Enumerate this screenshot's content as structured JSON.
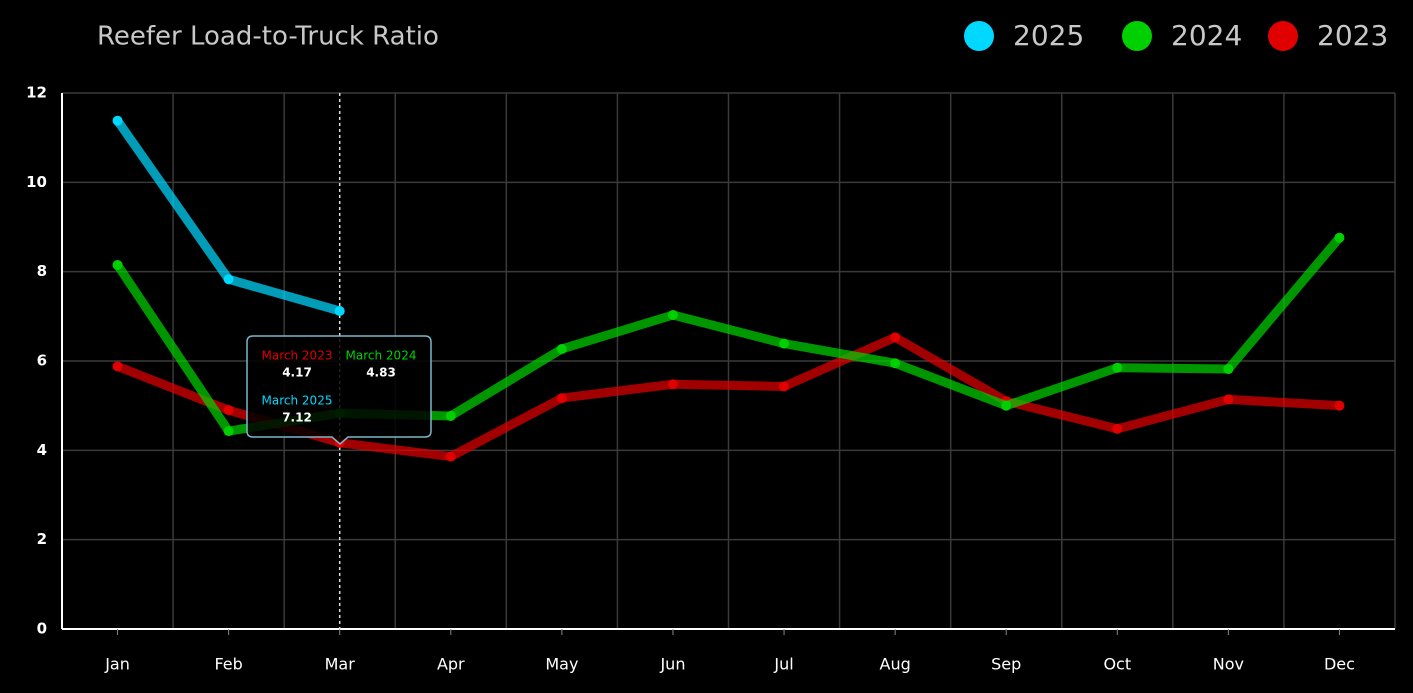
{
  "chart_data": {
    "type": "line",
    "title": "Reefer Load-to-Truck Ratio",
    "categories": [
      "Jan",
      "Feb",
      "Mar",
      "Apr",
      "May",
      "Jun",
      "Jul",
      "Aug",
      "Sep",
      "Oct",
      "Nov",
      "Dec"
    ],
    "series": [
      {
        "name": "2025",
        "color": "#00d8ff",
        "values": [
          11.38,
          7.83,
          7.12,
          null,
          null,
          null,
          null,
          null,
          null,
          null,
          null,
          null
        ]
      },
      {
        "name": "2024",
        "color": "#00d000",
        "values": [
          8.15,
          4.43,
          4.83,
          4.77,
          6.27,
          7.03,
          6.39,
          5.95,
          5.0,
          5.85,
          5.82,
          8.76
        ]
      },
      {
        "name": "2023",
        "color": "#e00000",
        "values": [
          5.88,
          4.9,
          4.17,
          3.86,
          5.17,
          5.48,
          5.43,
          6.53,
          5.1,
          4.48,
          5.14,
          5.0
        ]
      }
    ],
    "ylim": [
      0,
      12
    ],
    "yticks": [
      0,
      2,
      4,
      6,
      8,
      10,
      12
    ],
    "grid": true,
    "legend": "top-right",
    "tooltip": {
      "labels": [
        "March 2023",
        "March 2024",
        "March 2025"
      ]
    }
  }
}
